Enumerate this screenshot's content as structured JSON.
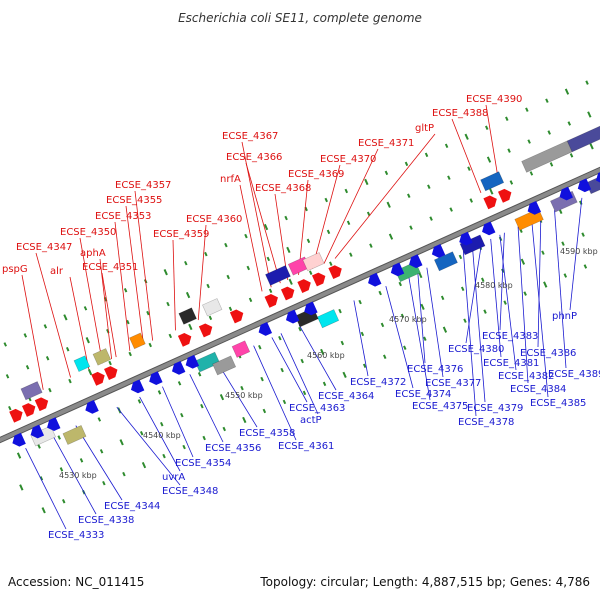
{
  "title": "Escherichia coli SE11, complete genome",
  "footer": {
    "accession": "Accession: NC_011415",
    "summary": "Topology: circular; Length: 4,887,515 bp; Genes: 4,786"
  },
  "colors": {
    "forward_label": "#dd1111",
    "reverse_label": "#1a1ad0",
    "backbone": "#8a8a8a",
    "tick": "#2e8b2e"
  },
  "kbp_labels": [
    "4530 kbp",
    "4540 kbp",
    "4550 kbp",
    "4560 kbp",
    "4570 kbp",
    "4580 kbp",
    "4590 kbp"
  ],
  "forward_genes": [
    "pspG",
    "ECSE_4347",
    "alr",
    "ECSE_4350",
    "aphA",
    "ECSE_4351",
    "ECSE_4353",
    "ECSE_4355",
    "ECSE_4357",
    "ECSE_4359",
    "ECSE_4360",
    "nrfA",
    "ECSE_4367",
    "ECSE_4366",
    "ECSE_4368",
    "ECSE_4369",
    "ECSE_4370",
    "ECSE_4371",
    "gltP",
    "ECSE_4388",
    "ECSE_4390"
  ],
  "reverse_genes": [
    "ECSE_4333",
    "ECSE_4338",
    "ECSE_4344",
    "ECSE_4348",
    "uvrA",
    "ECSE_4354",
    "ECSE_4356",
    "ECSE_4358",
    "ECSE_4361",
    "actP",
    "ECSE_4363",
    "ECSE_4364",
    "ECSE_4372",
    "ECSE_4374",
    "ECSE_4375",
    "ECSE_4376",
    "ECSE_4377",
    "ECSE_4378",
    "ECSE_4379",
    "ECSE_4380",
    "ECSE_4381",
    "ECSE_4382",
    "ECSE_4383",
    "ECSE_4384",
    "ECSE_4385",
    "ECSE_4386",
    "ECSE_4389",
    "phnP"
  ]
}
